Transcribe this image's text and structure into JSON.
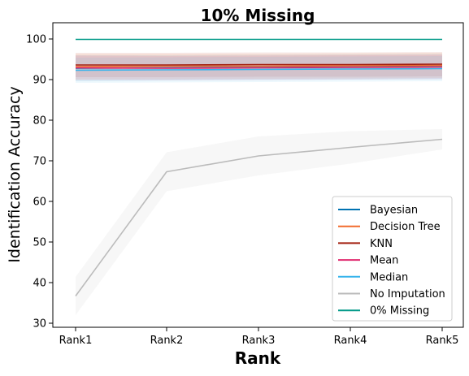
{
  "chart_data": {
    "type": "line",
    "title": "10% Missing",
    "xlabel": "Rank",
    "ylabel": "Identification Accuracy",
    "categories": [
      "Rank1",
      "Rank2",
      "Rank3",
      "Rank4",
      "Rank5"
    ],
    "ylim": [
      29,
      104
    ],
    "yticks": [
      30,
      40,
      50,
      60,
      70,
      80,
      90,
      100
    ],
    "grid": false,
    "legend_position": "lower-right",
    "series": [
      {
        "name": "Bayesian",
        "color": "#0072b2",
        "values": [
          92.8,
          92.9,
          93.0,
          93.1,
          93.2
        ],
        "band": [
          [
            89.6,
            96.0
          ],
          [
            89.8,
            96.0
          ],
          [
            89.9,
            96.1
          ],
          [
            90.0,
            96.2
          ],
          [
            90.1,
            96.3
          ]
        ]
      },
      {
        "name": "Decision Tree",
        "color": "#f26b2d",
        "values": [
          93.2,
          93.3,
          93.3,
          93.4,
          93.5
        ],
        "band": [
          [
            90.0,
            96.4
          ],
          [
            90.1,
            96.4
          ],
          [
            90.2,
            96.4
          ],
          [
            90.3,
            96.5
          ],
          [
            90.4,
            96.6
          ]
        ]
      },
      {
        "name": "KNN",
        "color": "#a31f0f",
        "values": [
          93.6,
          93.6,
          93.7,
          93.7,
          93.8
        ],
        "band": [
          [
            90.6,
            96.6
          ],
          [
            90.6,
            96.6
          ],
          [
            90.7,
            96.7
          ],
          [
            90.7,
            96.7
          ],
          [
            90.8,
            96.8
          ]
        ]
      },
      {
        "name": "Mean",
        "color": "#e0296e",
        "values": [
          92.9,
          92.8,
          92.9,
          93.0,
          93.1
        ],
        "band": [
          [
            89.9,
            95.9
          ],
          [
            89.8,
            95.8
          ],
          [
            89.9,
            95.9
          ],
          [
            90.0,
            96.0
          ],
          [
            90.1,
            96.1
          ]
        ]
      },
      {
        "name": "Median",
        "color": "#35b3ec",
        "values": [
          92.3,
          92.4,
          92.5,
          92.6,
          92.7
        ],
        "band": [
          [
            89.2,
            95.4
          ],
          [
            89.3,
            95.5
          ],
          [
            89.4,
            95.6
          ],
          [
            89.5,
            95.7
          ],
          [
            89.6,
            95.8
          ]
        ]
      },
      {
        "name": "No Imputation",
        "color": "#bbbbbb",
        "values": [
          36.7,
          67.3,
          71.2,
          73.3,
          75.3
        ],
        "band": [
          [
            32.0,
            41.4
          ],
          [
            62.5,
            72.1
          ],
          [
            66.4,
            76.0
          ],
          [
            69.3,
            77.3
          ],
          [
            72.8,
            77.8
          ]
        ]
      },
      {
        "name": "0% Missing",
        "color": "#009988",
        "values": [
          99.9,
          99.9,
          99.9,
          99.9,
          99.9
        ],
        "band": null
      }
    ]
  }
}
